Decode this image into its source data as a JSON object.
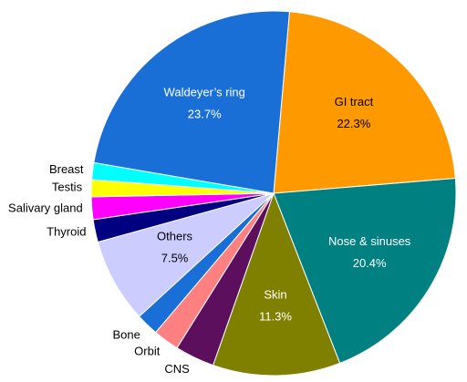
{
  "chart_data": {
    "type": "pie",
    "categories": [
      "GI tract",
      "Nose & sinuses",
      "Skin",
      "CNS",
      "Orbit",
      "Bone",
      "Others",
      "Thyroid",
      "Salivary gland",
      "Testis",
      "Breast",
      "Waldeyer’s ring"
    ],
    "values": [
      22.3,
      20.4,
      11.3,
      3.5,
      2.3,
      2.0,
      7.5,
      2.0,
      2.0,
      1.5,
      1.5,
      23.7
    ],
    "value_labels": [
      "22.3%",
      "20.4%",
      "11.3%",
      null,
      null,
      null,
      "7.5%",
      null,
      null,
      null,
      null,
      "23.7%"
    ],
    "colors": [
      "#ff9900",
      "#008080",
      "#808000",
      "#5c0f5c",
      "#ff8080",
      "#1a6fd6",
      "#ccccff",
      "#000080",
      "#ff00ff",
      "#ffff00",
      "#00ffff",
      "#1a6fd6"
    ]
  }
}
